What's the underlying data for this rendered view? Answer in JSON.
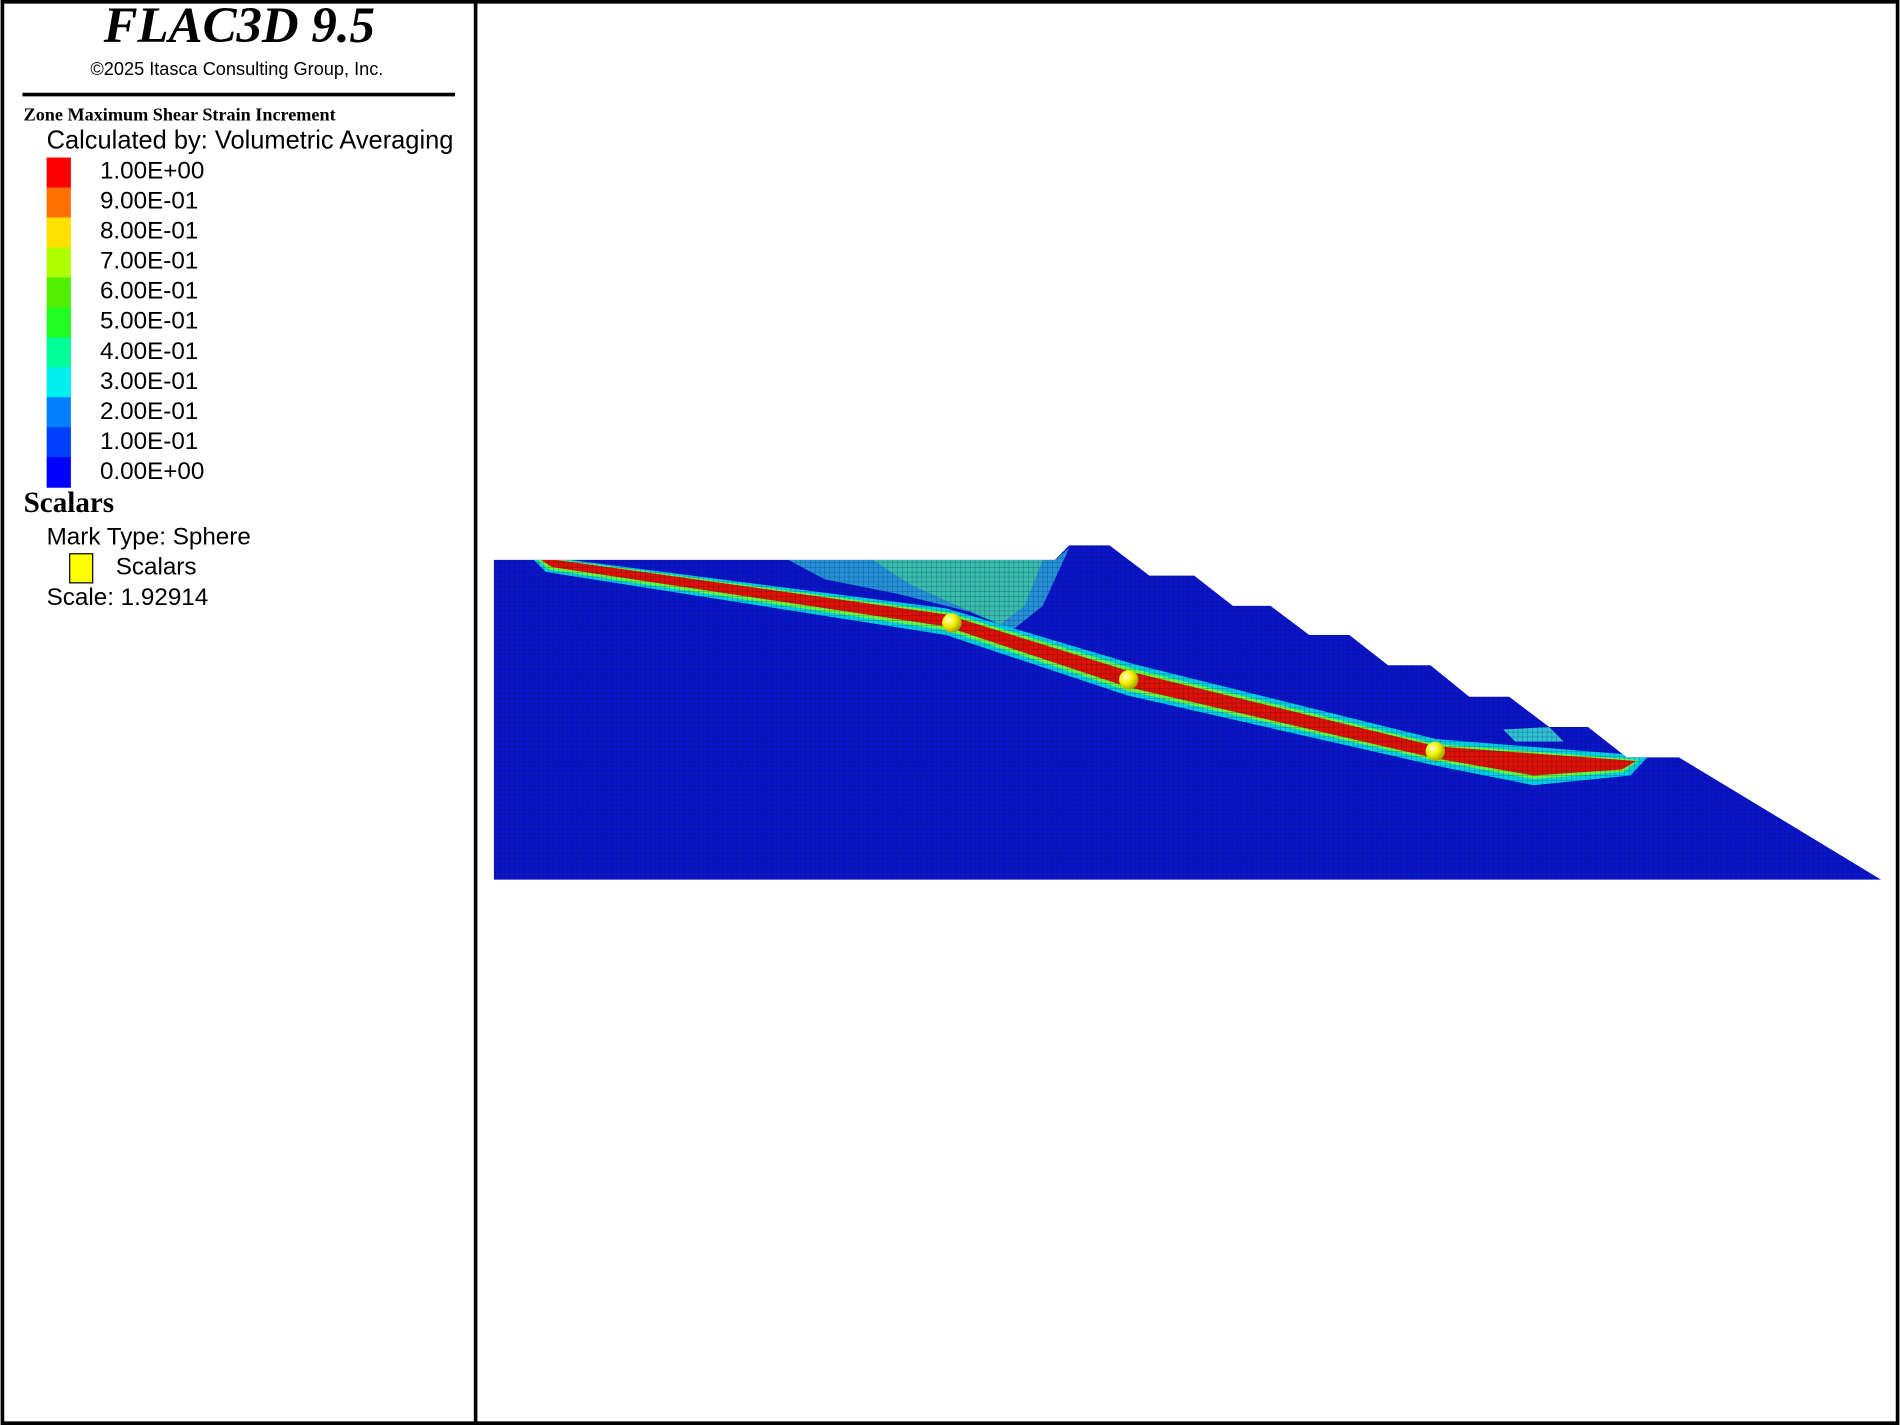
{
  "header": {
    "title": "FLAC3D 9.5",
    "copyright": "©2025 Itasca Consulting Group, Inc."
  },
  "contour_legend": {
    "title": "Zone Maximum Shear Strain Increment",
    "method": "Calculated by: Volumetric Averaging",
    "levels": [
      {
        "label": "1.00E+00",
        "color": "#ff0000"
      },
      {
        "label": "9.00E-01",
        "color": "#ff7000"
      },
      {
        "label": "8.00E-01",
        "color": "#ffe000"
      },
      {
        "label": "7.00E-01",
        "color": "#b0ff00"
      },
      {
        "label": "6.00E-01",
        "color": "#50f000"
      },
      {
        "label": "5.00E-01",
        "color": "#20ff20"
      },
      {
        "label": "4.00E-01",
        "color": "#00ff99"
      },
      {
        "label": "3.00E-01",
        "color": "#00eeee"
      },
      {
        "label": "2.00E-01",
        "color": "#0080ff"
      },
      {
        "label": "1.00E-01",
        "color": "#0040ff"
      },
      {
        "label": "0.00E+00",
        "color": "#0000ff"
      }
    ]
  },
  "scalars_legend": {
    "title": "Scalars",
    "mark_type": "Mark Type: Sphere",
    "entry": {
      "label": "Scalars",
      "color": "#ffff00"
    },
    "scale": "Scale: 1.92914"
  }
}
